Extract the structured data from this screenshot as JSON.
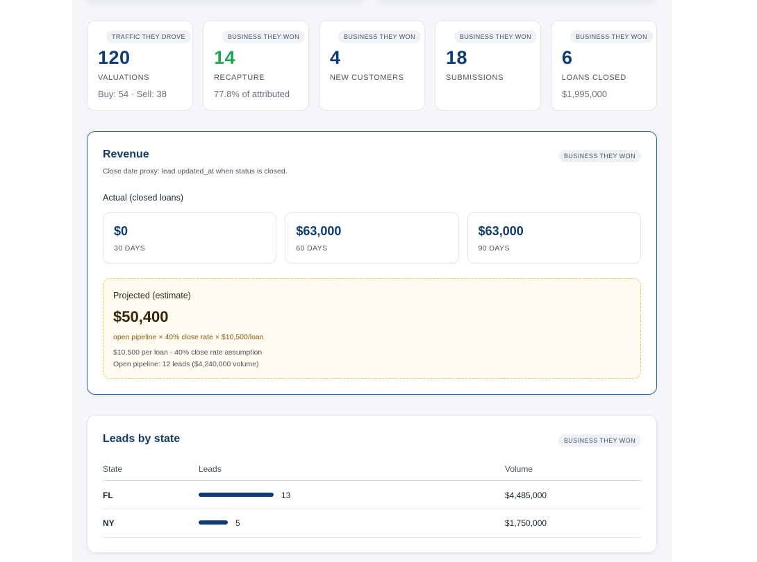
{
  "kpis": [
    {
      "tag": "TRAFFIC THEY DROVE",
      "value": "120",
      "label": "VALUATIONS",
      "sub": "Buy: 54 · Sell: 38",
      "color": "#0d3b78"
    },
    {
      "tag": "BUSINESS THEY WON",
      "value": "14",
      "label": "RECAPTURE",
      "sub": "77.8% of attributed",
      "color": "#22a74f"
    },
    {
      "tag": "BUSINESS THEY WON",
      "value": "4",
      "label": "NEW CUSTOMERS",
      "sub": "",
      "color": "#0d3b78"
    },
    {
      "tag": "BUSINESS THEY WON",
      "value": "18",
      "label": "SUBMISSIONS",
      "sub": "",
      "color": "#0d3b78"
    },
    {
      "tag": "BUSINESS THEY WON",
      "value": "6",
      "label": "LOANS CLOSED",
      "sub": "$1,995,000",
      "color": "#0d3b78"
    }
  ],
  "revenue": {
    "title": "Revenue",
    "tag": "BUSINESS THEY WON",
    "note": "Close date proxy: lead updated_at when status is closed.",
    "actual_label": "Actual (closed loans)",
    "periods": [
      {
        "value": "$0",
        "label": "30 DAYS"
      },
      {
        "value": "$63,000",
        "label": "60 DAYS"
      },
      {
        "value": "$63,000",
        "label": "90 DAYS"
      }
    ],
    "projected": {
      "title": "Projected (estimate)",
      "value": "$50,400",
      "formula": "open pipeline × 40% close rate × $10,500/loan",
      "assumption": "$10,500 per loan · 40% close rate assumption",
      "pipeline": "Open pipeline: 12 leads ($4,240,000 volume)"
    }
  },
  "states": {
    "title": "Leads by state",
    "tag": "BUSINESS THEY WON",
    "columns": [
      "State",
      "Leads",
      "Volume"
    ],
    "rows": [
      {
        "state": "FL",
        "leads": 13,
        "leads_label": "13",
        "volume": "$4,485,000"
      },
      {
        "state": "NY",
        "leads": 5,
        "leads_label": "5",
        "volume": "$1,750,000"
      }
    ],
    "bar_color": "#0d3b78"
  }
}
